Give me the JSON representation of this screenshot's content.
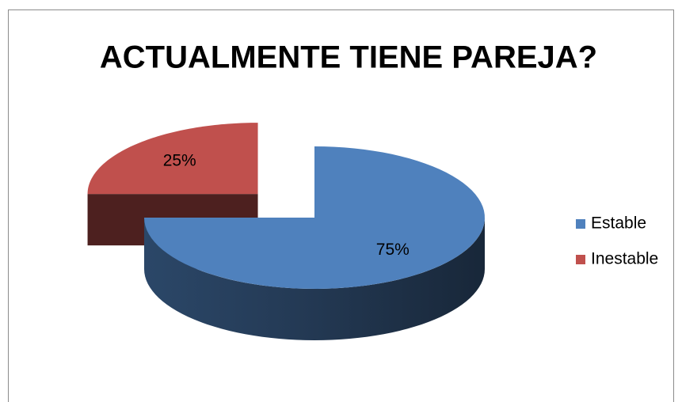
{
  "chart_data": {
    "type": "pie",
    "title": "ACTUALMENTE TIENE PAREJA?",
    "categories": [
      "Estable",
      "Inestable"
    ],
    "values": [
      75,
      25
    ],
    "value_labels": [
      "75%",
      "25%"
    ],
    "colors": [
      "#4f81bd",
      "#c0504d"
    ],
    "legend": "right"
  }
}
